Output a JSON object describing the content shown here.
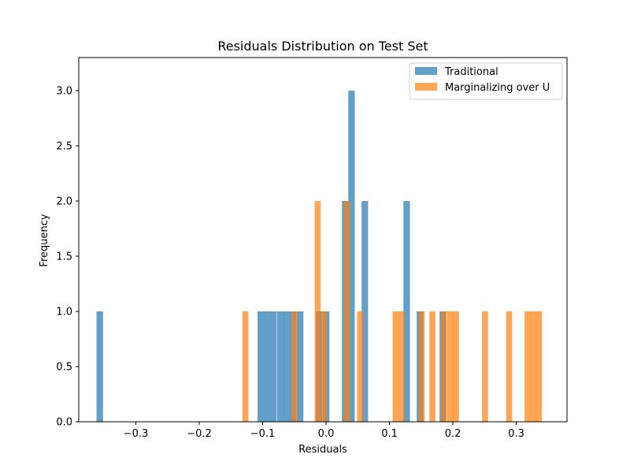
{
  "chart_data": {
    "type": "bar",
    "subtype": "histogram",
    "title": "Residuals Distribution on Test Set",
    "xlabel": "Residuals",
    "ylabel": "Frequency",
    "xlim": [
      -0.39,
      0.38
    ],
    "ylim": [
      0,
      3.3
    ],
    "xticks": [
      -0.3,
      -0.2,
      -0.1,
      0.0,
      0.1,
      0.2,
      0.3
    ],
    "xtick_labels": [
      "−0.3",
      "−0.2",
      "−0.1",
      "0.0",
      "0.1",
      "0.2",
      "0.3"
    ],
    "yticks": [
      0,
      0.5,
      1.0,
      1.5,
      2.0,
      2.5,
      3.0
    ],
    "ytick_labels": [
      "0.0",
      "0.5",
      "1.0",
      "1.5",
      "2.0",
      "2.5",
      "3.0"
    ],
    "grid": false,
    "legend_position": "top-right",
    "alpha": 0.7,
    "series": [
      {
        "name": "Traditional",
        "color": "#1f77b4",
        "bin_width": 0.0103,
        "bins": [
          {
            "x0": -0.362,
            "count": 1
          },
          {
            "x0": -0.108,
            "count": 1
          },
          {
            "x0": -0.098,
            "count": 1
          },
          {
            "x0": -0.088,
            "count": 1
          },
          {
            "x0": -0.077,
            "count": 1
          },
          {
            "x0": -0.067,
            "count": 1
          },
          {
            "x0": -0.057,
            "count": 1
          },
          {
            "x0": -0.046,
            "count": 1
          },
          {
            "x0": -0.016,
            "count": 1
          },
          {
            "x0": -0.005,
            "count": 1
          },
          {
            "x0": 0.025,
            "count": 2
          },
          {
            "x0": 0.035,
            "count": 3
          },
          {
            "x0": 0.056,
            "count": 2
          },
          {
            "x0": 0.122,
            "count": 2
          },
          {
            "x0": 0.143,
            "count": 1
          },
          {
            "x0": 0.179,
            "count": 1
          }
        ]
      },
      {
        "name": "Marginalizing over U",
        "color": "#ff7f0e",
        "bin_width": 0.0095,
        "bins": [
          {
            "x0": -0.132,
            "count": 1
          },
          {
            "x0": -0.055,
            "count": 1
          },
          {
            "x0": -0.018,
            "count": 2
          },
          {
            "x0": -0.008,
            "count": 1
          },
          {
            "x0": 0.028,
            "count": 2
          },
          {
            "x0": 0.049,
            "count": 1
          },
          {
            "x0": 0.105,
            "count": 1
          },
          {
            "x0": 0.114,
            "count": 1
          },
          {
            "x0": 0.146,
            "count": 1
          },
          {
            "x0": 0.163,
            "count": 1
          },
          {
            "x0": 0.181,
            "count": 1
          },
          {
            "x0": 0.191,
            "count": 1
          },
          {
            "x0": 0.2,
            "count": 1
          },
          {
            "x0": 0.246,
            "count": 1
          },
          {
            "x0": 0.284,
            "count": 1
          },
          {
            "x0": 0.313,
            "count": 1
          },
          {
            "x0": 0.322,
            "count": 1
          },
          {
            "x0": 0.331,
            "count": 1
          }
        ]
      }
    ]
  }
}
